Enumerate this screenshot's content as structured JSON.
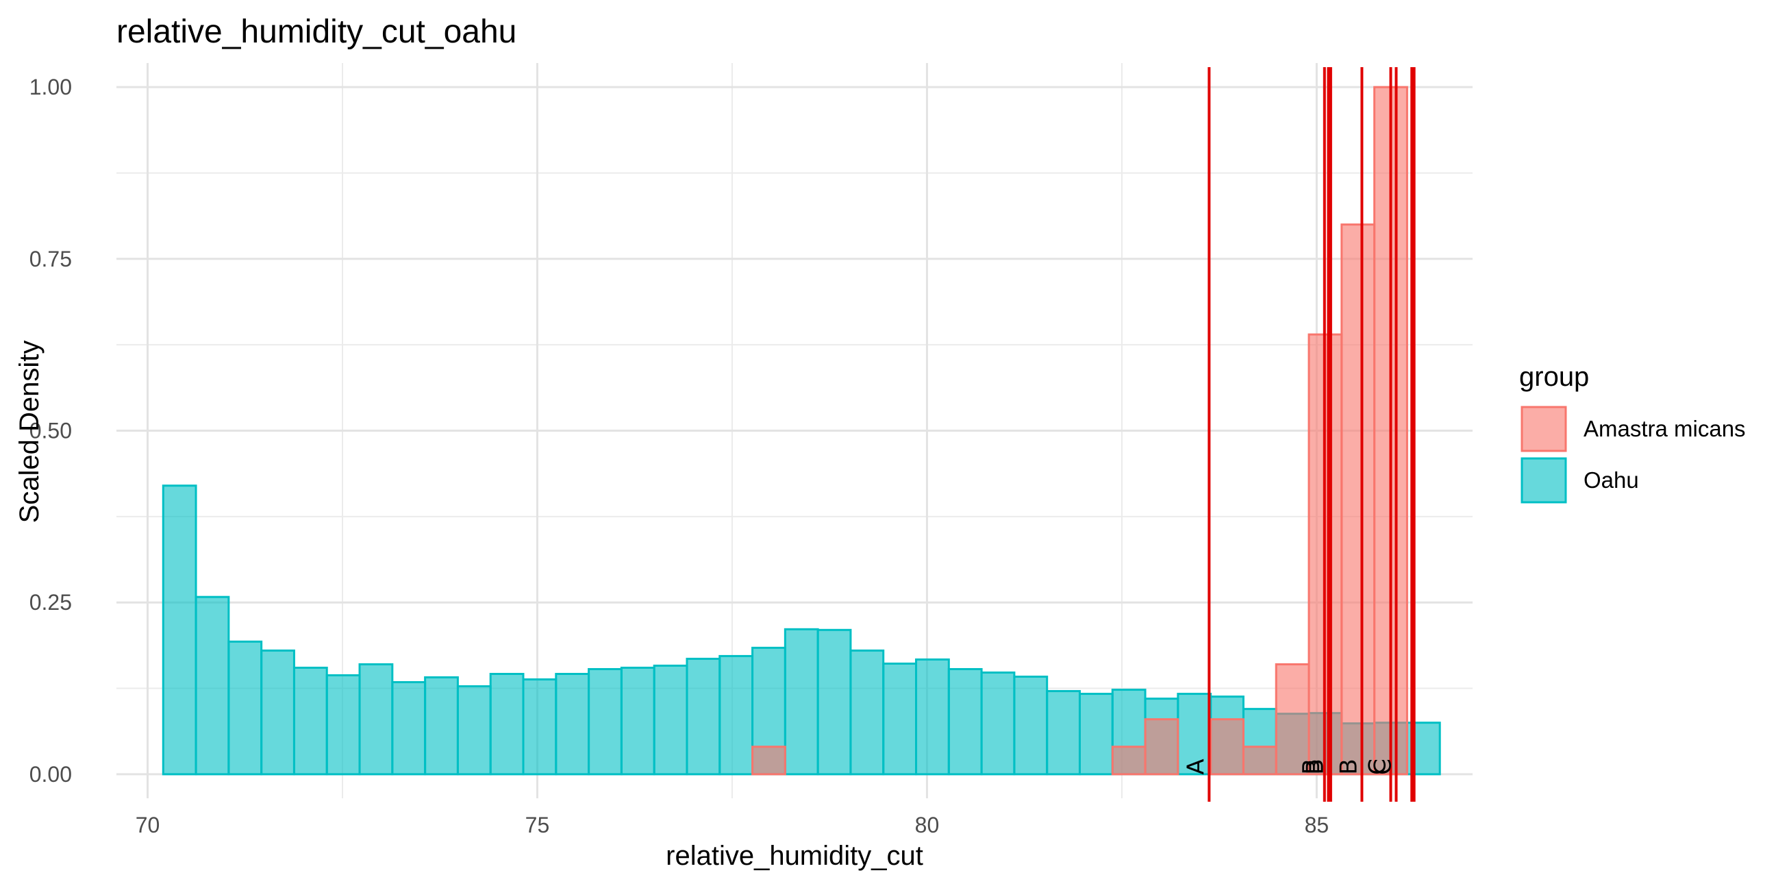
{
  "chart_data": {
    "type": "histogram",
    "title": "relative_humidity_cut_oahu",
    "xlabel": "relative_humidity_cut",
    "ylabel": "Scaled Density",
    "xlim": [
      69.6,
      87.0
    ],
    "ylim": [
      -0.035,
      1.035
    ],
    "x_ticks": [
      70,
      75,
      80,
      85
    ],
    "x_tick_labels": [
      "70",
      "75",
      "80",
      "85"
    ],
    "y_ticks": [
      0,
      0.25,
      0.5,
      0.75,
      1.0
    ],
    "y_tick_labels": [
      "0.00",
      "0.25",
      "0.50",
      "0.75",
      "1.00"
    ],
    "grid": true,
    "legend": {
      "title": "group",
      "position": "right",
      "entries": [
        "Amastra micans",
        "Oahu"
      ]
    },
    "bin_width": 0.42,
    "series": [
      {
        "name": "Oahu",
        "fill": "#00BFC4",
        "bins_start": 70.2,
        "values": [
          0.42,
          0.258,
          0.193,
          0.18,
          0.155,
          0.144,
          0.16,
          0.134,
          0.141,
          0.128,
          0.146,
          0.138,
          0.146,
          0.153,
          0.155,
          0.158,
          0.168,
          0.172,
          0.184,
          0.211,
          0.21,
          0.18,
          0.161,
          0.167,
          0.153,
          0.148,
          0.142,
          0.121,
          0.117,
          0.123,
          0.11,
          0.117,
          0.113,
          0.095,
          0.088,
          0.089,
          0.074,
          0.075,
          0.075
        ]
      },
      {
        "name": "Amastra micans",
        "fill": "#F8766D",
        "bins": [
          {
            "x": 77.76,
            "value": 0.04
          },
          {
            "x": 82.38,
            "value": 0.04
          },
          {
            "x": 82.8,
            "value": 0.08
          },
          {
            "x": 83.64,
            "value": 0.08
          },
          {
            "x": 84.06,
            "value": 0.04
          },
          {
            "x": 84.48,
            "value": 0.16
          },
          {
            "x": 84.9,
            "value": 0.64
          },
          {
            "x": 85.32,
            "value": 0.8
          },
          {
            "x": 85.74,
            "value": 1.0
          }
        ]
      }
    ],
    "vlines": [
      {
        "x": 83.62,
        "label": "A"
      },
      {
        "x": 85.1,
        "label": "B"
      },
      {
        "x": 85.15,
        "label": "B"
      },
      {
        "x": 85.18,
        "label": ""
      },
      {
        "x": 85.58,
        "label": "B"
      },
      {
        "x": 85.95,
        "label": "C"
      },
      {
        "x": 86.02,
        "label": "C"
      },
      {
        "x": 86.22,
        "label": ""
      },
      {
        "x": 86.25,
        "label": ""
      }
    ],
    "vline_color": "#E00000"
  }
}
